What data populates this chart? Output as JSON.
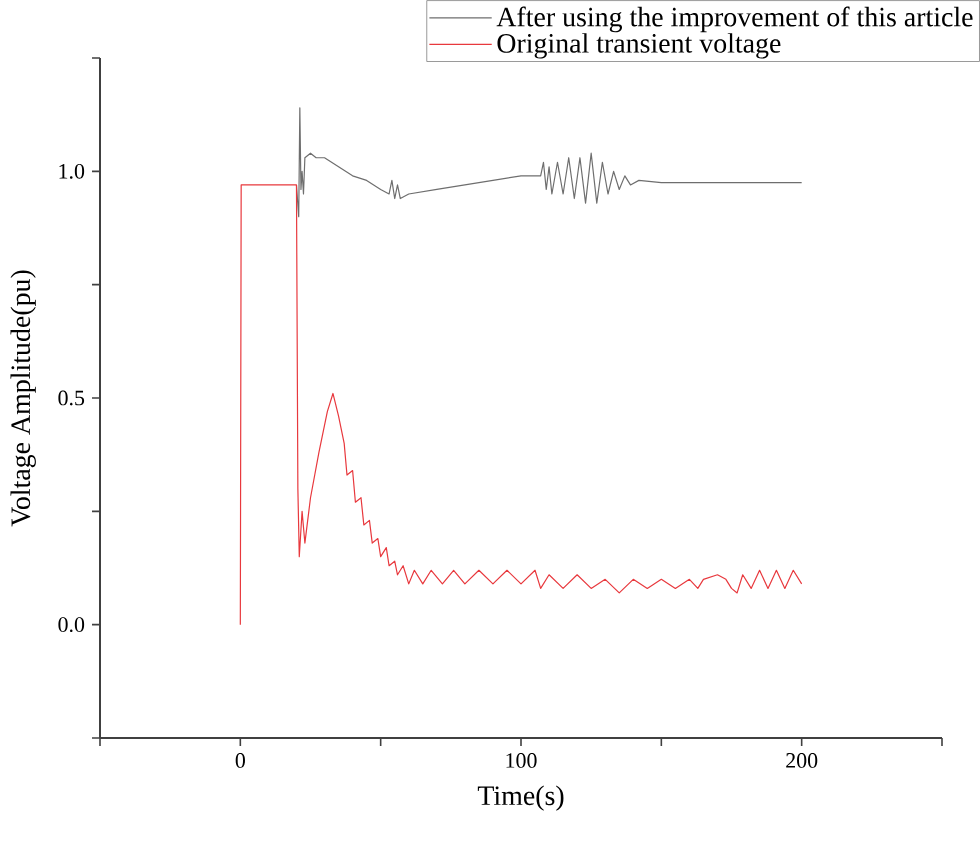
{
  "chart_data": {
    "type": "line",
    "xlabel": "Time(s)",
    "ylabel": "Voltage Amplitude(pu)",
    "xlim": [
      -50,
      250
    ],
    "ylim": [
      -0.25,
      1.25
    ],
    "xticks": [
      {
        "value": -50,
        "label": null
      },
      0,
      {
        "value": 50,
        "label": null
      },
      100,
      {
        "value": 150,
        "label": null
      },
      200,
      {
        "value": 250,
        "label": null
      }
    ],
    "yticks": [
      {
        "value": -0.25,
        "label": null
      },
      {
        "value": 0,
        "label": "0.0"
      },
      {
        "value": 0.25,
        "label": null
      },
      0.5,
      {
        "value": 0.75,
        "label": null
      },
      {
        "value": 1,
        "label": "1.0"
      },
      {
        "value": 1.25,
        "label": null
      }
    ],
    "grid": false,
    "legend": "top right",
    "marker": "none",
    "line_style": "solid",
    "series": [
      {
        "name": "After using the improvement of this article",
        "color": "#6e6e6e",
        "x": [
          20,
          20.8,
          21.2,
          21.6,
          22,
          22.5,
          23,
          25,
          27,
          30,
          35,
          40,
          45,
          50,
          53,
          54,
          55,
          56,
          57,
          60,
          65,
          70,
          80,
          90,
          100,
          107,
          108,
          109,
          110,
          111,
          113,
          115,
          117,
          119,
          121,
          123,
          125,
          127,
          129,
          131,
          133,
          135,
          137,
          139,
          142,
          150,
          175,
          200
        ],
        "values": [
          0.97,
          0.9,
          1.14,
          0.96,
          1.0,
          0.95,
          1.03,
          1.04,
          1.03,
          1.03,
          1.01,
          0.99,
          0.98,
          0.96,
          0.95,
          0.98,
          0.94,
          0.97,
          0.94,
          0.95,
          0.955,
          0.96,
          0.97,
          0.98,
          0.99,
          0.99,
          1.02,
          0.96,
          1.01,
          0.95,
          1.02,
          0.95,
          1.03,
          0.94,
          1.03,
          0.93,
          1.04,
          0.93,
          1.02,
          0.95,
          1.0,
          0.96,
          0.99,
          0.97,
          0.98,
          0.975,
          0.975,
          0.975
        ]
      },
      {
        "name": "Original transient voltage",
        "color": "#e8383d",
        "x": [
          0,
          0.3,
          20,
          20.5,
          21,
          22,
          23,
          25,
          28,
          31,
          33,
          35,
          37,
          38,
          40,
          41,
          43,
          44,
          46,
          47,
          49,
          50,
          52,
          53,
          55,
          56,
          58,
          60,
          62,
          65,
          68,
          72,
          76,
          80,
          85,
          90,
          95,
          100,
          105,
          107,
          110,
          115,
          120,
          125,
          130,
          135,
          140,
          145,
          150,
          155,
          160,
          163,
          165,
          170,
          173,
          175,
          177,
          179,
          182,
          185,
          188,
          191,
          194,
          197,
          200
        ],
        "values": [
          0,
          0.97,
          0.97,
          0.3,
          0.15,
          0.25,
          0.18,
          0.28,
          0.38,
          0.47,
          0.51,
          0.46,
          0.4,
          0.33,
          0.34,
          0.27,
          0.28,
          0.22,
          0.23,
          0.18,
          0.19,
          0.15,
          0.17,
          0.13,
          0.14,
          0.11,
          0.13,
          0.09,
          0.12,
          0.09,
          0.12,
          0.09,
          0.12,
          0.09,
          0.12,
          0.09,
          0.12,
          0.09,
          0.12,
          0.08,
          0.11,
          0.08,
          0.11,
          0.08,
          0.1,
          0.07,
          0.1,
          0.08,
          0.1,
          0.08,
          0.1,
          0.08,
          0.1,
          0.11,
          0.1,
          0.08,
          0.07,
          0.11,
          0.08,
          0.12,
          0.08,
          0.12,
          0.08,
          0.12,
          0.09
        ]
      }
    ]
  }
}
